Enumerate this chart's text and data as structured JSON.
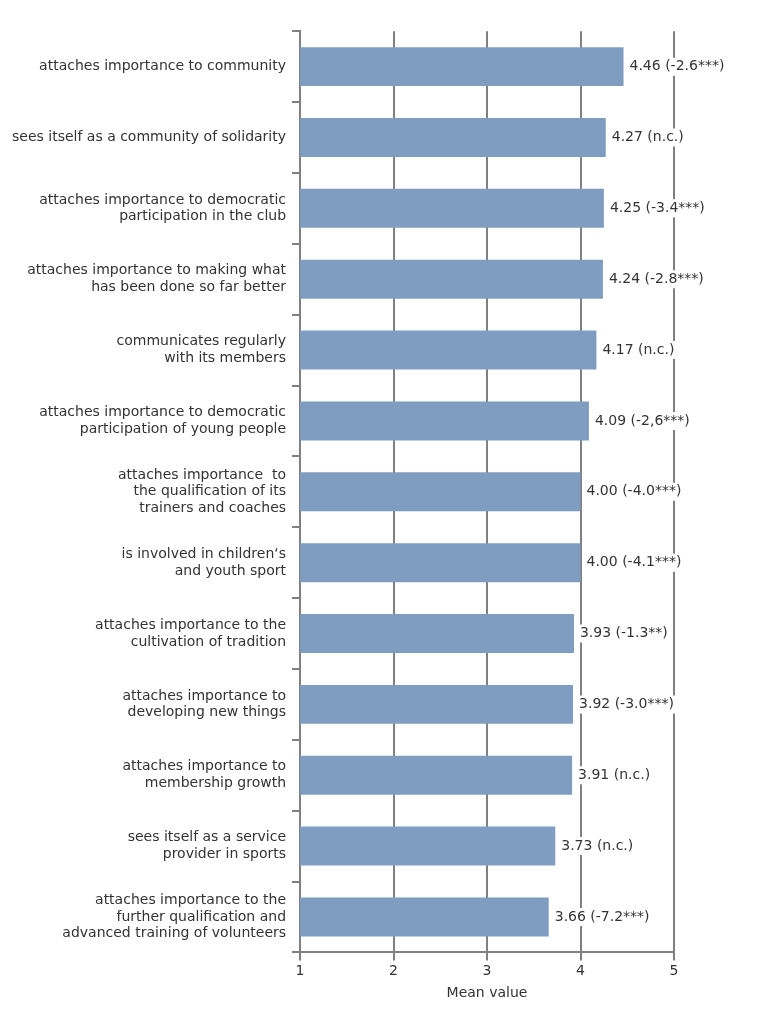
{
  "chart_data": {
    "type": "bar",
    "orientation": "horizontal",
    "xlabel": "Mean value",
    "categories": [
      "attaches importance to community",
      "sees itself as a community of solidarity",
      "attaches importance to democratic\nparticipation in the club",
      "attaches importance to making what\nhas been done so far better",
      "communicates regularly\nwith its members",
      "attaches importance to democratic\nparticipation of young people",
      "attaches importance  to\nthe qualification of its\ntrainers and coaches",
      "is involved in children‘s\nand youth sport",
      "attaches importance to the\ncultivation of tradition",
      "attaches importance to\ndeveloping new things",
      "attaches importance to\nmembership growth",
      "sees itself as a service\nprovider in sports",
      "attaches importance to the\nfurther qualification and\nadvanced training of volunteers"
    ],
    "values": [
      4.46,
      4.27,
      4.25,
      4.24,
      4.17,
      4.09,
      4.0,
      4.0,
      3.93,
      3.92,
      3.91,
      3.73,
      3.66
    ],
    "value_labels": [
      "4.46 (-2.6***)",
      "4.27 (n.c.)",
      "4.25 (-3.4***)",
      "4.24 (-2.8***)",
      "4.17 (n.c.)",
      "4.09 (-2,6***)",
      "4.00 (-4.0***)",
      "4.00 (-4.1***)",
      "3.93 (-1.3**)",
      "3.92 (-3.0***)",
      "3.91 (n.c.)",
      "3.73 (n.c.)",
      "3.66 (-7.2***)"
    ],
    "color": "#7f9dc0",
    "xlim": [
      1,
      5
    ],
    "xticks": [
      1,
      2,
      3,
      4,
      5
    ],
    "grid": "x",
    "legend": false
  }
}
